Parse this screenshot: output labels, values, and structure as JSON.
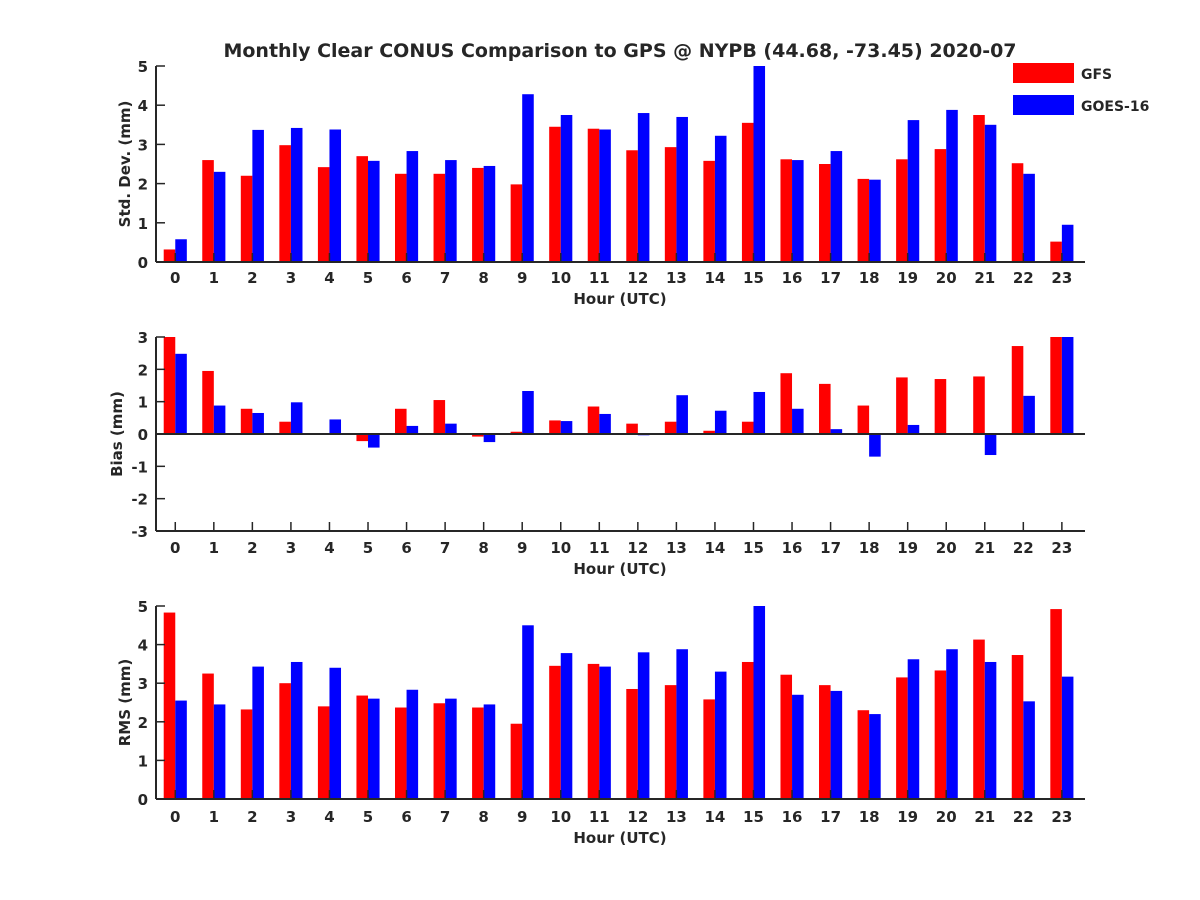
{
  "title": "Monthly Clear CONUS Comparison to GPS @ NYPB (44.68, -73.45) 2020-07",
  "legend": {
    "placement": "top-right",
    "entries": [
      {
        "name": "GFS",
        "color": "#ff0000"
      },
      {
        "name": "GOES-16",
        "color": "#0000ff"
      }
    ]
  },
  "chart_data": [
    {
      "type": "bar",
      "ylabel": "Std. Dev. (mm)",
      "xlabel": "Hour (UTC)",
      "ylim": [
        0,
        5
      ],
      "yticks": [
        "0",
        "1",
        "2",
        "3",
        "4",
        "5"
      ],
      "categories": [
        "0",
        "1",
        "2",
        "3",
        "4",
        "5",
        "6",
        "7",
        "8",
        "9",
        "10",
        "11",
        "12",
        "13",
        "14",
        "15",
        "16",
        "17",
        "18",
        "19",
        "20",
        "21",
        "22",
        "23"
      ],
      "series": [
        {
          "name": "GFS",
          "color": "#ff0000",
          "values": [
            0.32,
            2.6,
            2.2,
            2.98,
            2.42,
            2.7,
            2.25,
            2.25,
            2.4,
            1.98,
            3.45,
            3.4,
            2.85,
            2.93,
            2.58,
            3.55,
            2.62,
            2.5,
            2.12,
            2.62,
            2.88,
            3.75,
            2.52,
            0.52
          ]
        },
        {
          "name": "GOES-16",
          "color": "#0000ff",
          "values": [
            0.58,
            2.3,
            3.37,
            3.42,
            3.38,
            2.58,
            2.83,
            2.6,
            2.45,
            4.28,
            3.75,
            3.38,
            3.8,
            3.7,
            3.22,
            5.0,
            2.6,
            2.83,
            2.1,
            3.62,
            3.88,
            3.5,
            2.25,
            0.95
          ]
        }
      ]
    },
    {
      "type": "bar",
      "ylabel": "Bias (mm)",
      "xlabel": "Hour (UTC)",
      "ylim": [
        -3,
        3
      ],
      "yticks": [
        "-3",
        "-2",
        "-1",
        "0",
        "1",
        "2",
        "3"
      ],
      "zero_line": true,
      "categories": [
        "0",
        "1",
        "2",
        "3",
        "4",
        "5",
        "6",
        "7",
        "8",
        "9",
        "10",
        "11",
        "12",
        "13",
        "14",
        "15",
        "16",
        "17",
        "18",
        "19",
        "20",
        "21",
        "22",
        "23"
      ],
      "series": [
        {
          "name": "GFS",
          "color": "#ff0000",
          "values": [
            3.0,
            1.95,
            0.78,
            0.38,
            0.0,
            -0.22,
            0.78,
            1.05,
            -0.08,
            0.07,
            0.42,
            0.85,
            0.32,
            0.38,
            0.1,
            0.38,
            1.88,
            1.55,
            0.88,
            1.75,
            1.7,
            1.78,
            2.72,
            3.0
          ]
        },
        {
          "name": "GOES-16",
          "color": "#0000ff",
          "values": [
            2.48,
            0.88,
            0.65,
            0.98,
            0.45,
            -0.42,
            0.25,
            0.32,
            -0.25,
            1.33,
            0.4,
            0.62,
            -0.04,
            1.2,
            0.72,
            1.3,
            0.78,
            0.15,
            -0.7,
            0.28,
            -0.03,
            -0.65,
            1.18,
            3.0
          ]
        }
      ]
    },
    {
      "type": "bar",
      "ylabel": "RMS (mm)",
      "xlabel": "Hour (UTC)",
      "ylim": [
        0,
        5
      ],
      "yticks": [
        "0",
        "1",
        "2",
        "3",
        "4",
        "5"
      ],
      "categories": [
        "0",
        "1",
        "2",
        "3",
        "4",
        "5",
        "6",
        "7",
        "8",
        "9",
        "10",
        "11",
        "12",
        "13",
        "14",
        "15",
        "16",
        "17",
        "18",
        "19",
        "20",
        "21",
        "22",
        "23"
      ],
      "series": [
        {
          "name": "GFS",
          "color": "#ff0000",
          "values": [
            4.83,
            3.25,
            2.32,
            3.0,
            2.4,
            2.68,
            2.37,
            2.48,
            2.37,
            1.95,
            3.45,
            3.5,
            2.85,
            2.95,
            2.58,
            3.55,
            3.22,
            2.95,
            2.3,
            3.15,
            3.33,
            4.13,
            3.73,
            4.92
          ]
        },
        {
          "name": "GOES-16",
          "color": "#0000ff",
          "values": [
            2.55,
            2.45,
            3.43,
            3.55,
            3.4,
            2.6,
            2.83,
            2.6,
            2.45,
            4.5,
            3.78,
            3.43,
            3.8,
            3.88,
            3.3,
            5.0,
            2.7,
            2.8,
            2.2,
            3.62,
            3.88,
            3.55,
            2.53,
            3.17
          ]
        }
      ]
    }
  ]
}
